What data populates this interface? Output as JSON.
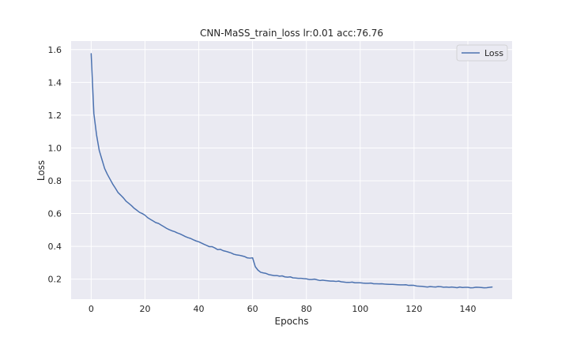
{
  "chart_data": {
    "type": "line",
    "title": "CNN-MaSS_train_loss lr:0.01 acc:76.76",
    "xlabel": "Epochs",
    "ylabel": "Loss",
    "xlim": [
      -7.45,
      156.45
    ],
    "ylim": [
      0.078,
      1.652
    ],
    "xticks": [
      0,
      20,
      40,
      60,
      80,
      100,
      120,
      140
    ],
    "yticks": [
      0.2,
      0.4,
      0.6,
      0.8,
      1.0,
      1.2,
      1.4,
      1.6
    ],
    "ytick_labels": [
      "0.2",
      "0.4",
      "0.6",
      "0.8",
      "1.0",
      "1.2",
      "1.4",
      "1.6"
    ],
    "grid": true,
    "legend_position": "top-right",
    "colors": {
      "background": "#eaeaf2",
      "grid": "#ffffff",
      "line": "#4c72b0"
    },
    "series": [
      {
        "name": "Loss",
        "x": [
          0,
          1,
          2,
          3,
          4,
          5,
          6,
          7,
          8,
          9,
          10,
          11,
          12,
          13,
          14,
          15,
          16,
          17,
          18,
          19,
          20,
          21,
          22,
          23,
          24,
          25,
          26,
          27,
          28,
          29,
          30,
          31,
          32,
          33,
          34,
          35,
          36,
          37,
          38,
          39,
          40,
          41,
          42,
          43,
          44,
          45,
          46,
          47,
          48,
          49,
          50,
          51,
          52,
          53,
          54,
          55,
          56,
          57,
          58,
          59,
          60,
          61,
          62,
          63,
          64,
          65,
          66,
          67,
          68,
          69,
          70,
          71,
          72,
          73,
          74,
          75,
          76,
          77,
          78,
          79,
          80,
          81,
          82,
          83,
          84,
          85,
          86,
          87,
          88,
          89,
          90,
          91,
          92,
          93,
          94,
          95,
          96,
          97,
          98,
          99,
          100,
          101,
          102,
          103,
          104,
          105,
          106,
          107,
          108,
          109,
          110,
          111,
          112,
          113,
          114,
          115,
          116,
          117,
          118,
          119,
          120,
          121,
          122,
          123,
          124,
          125,
          126,
          127,
          128,
          129,
          130,
          131,
          132,
          133,
          134,
          135,
          136,
          137,
          138,
          139,
          140,
          141,
          142,
          143,
          144,
          145,
          146,
          147,
          148,
          149
        ],
        "values": [
          1.575,
          1.21,
          1.08,
          0.985,
          0.93,
          0.875,
          0.84,
          0.81,
          0.78,
          0.755,
          0.728,
          0.712,
          0.695,
          0.675,
          0.662,
          0.648,
          0.632,
          0.62,
          0.607,
          0.6,
          0.59,
          0.575,
          0.565,
          0.555,
          0.545,
          0.54,
          0.53,
          0.52,
          0.51,
          0.502,
          0.495,
          0.49,
          0.482,
          0.476,
          0.468,
          0.46,
          0.453,
          0.448,
          0.44,
          0.433,
          0.428,
          0.42,
          0.412,
          0.405,
          0.398,
          0.398,
          0.39,
          0.38,
          0.382,
          0.374,
          0.37,
          0.365,
          0.36,
          0.352,
          0.348,
          0.346,
          0.342,
          0.338,
          0.33,
          0.328,
          0.33,
          0.276,
          0.255,
          0.242,
          0.238,
          0.235,
          0.228,
          0.225,
          0.222,
          0.222,
          0.218,
          0.22,
          0.214,
          0.212,
          0.214,
          0.208,
          0.207,
          0.205,
          0.205,
          0.203,
          0.202,
          0.198,
          0.198,
          0.2,
          0.196,
          0.192,
          0.194,
          0.192,
          0.19,
          0.188,
          0.188,
          0.186,
          0.188,
          0.184,
          0.182,
          0.18,
          0.18,
          0.182,
          0.178,
          0.178,
          0.178,
          0.176,
          0.175,
          0.175,
          0.176,
          0.172,
          0.172,
          0.171,
          0.172,
          0.17,
          0.169,
          0.168,
          0.168,
          0.167,
          0.166,
          0.165,
          0.165,
          0.166,
          0.162,
          0.163,
          0.162,
          0.158,
          0.157,
          0.156,
          0.154,
          0.152,
          0.155,
          0.153,
          0.152,
          0.155,
          0.154,
          0.151,
          0.152,
          0.15,
          0.152,
          0.15,
          0.148,
          0.152,
          0.149,
          0.15,
          0.15,
          0.147,
          0.148,
          0.151,
          0.15,
          0.149,
          0.147,
          0.148,
          0.15,
          0.152
        ]
      }
    ]
  }
}
